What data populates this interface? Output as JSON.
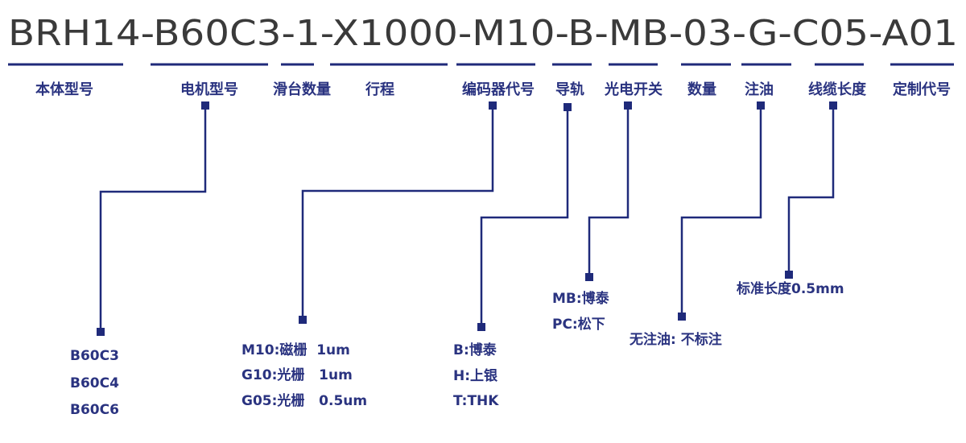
{
  "model_code": "BRH14-B60C3-1-X1000-M10-B-MB-03-G-C05-A01",
  "accent_color": "#1f2a7a",
  "fields": [
    {
      "label": "本体型号",
      "options": []
    },
    {
      "label": "电机型号",
      "options": [
        "B60C3",
        "B60C4",
        "B60C6"
      ]
    },
    {
      "label": "滑台数量",
      "options": []
    },
    {
      "label": "行程",
      "options": []
    },
    {
      "label": "编码器代号",
      "options": [
        "M10:磁栅  1um",
        "G10:光栅   1um",
        "G05:光栅   0.5um"
      ]
    },
    {
      "label": "导轨",
      "options": [
        "B:博泰",
        "H:上银",
        "T:THK"
      ]
    },
    {
      "label": "光电开关",
      "options": [
        "MB:博泰",
        "PC:松下"
      ]
    },
    {
      "label": "数量",
      "options": []
    },
    {
      "label": "注油",
      "options": [
        "无注油: 不标注"
      ]
    },
    {
      "label": "线缆长度",
      "options": [
        "标准长度0.5mm"
      ]
    },
    {
      "label": "定制代号",
      "options": []
    }
  ]
}
